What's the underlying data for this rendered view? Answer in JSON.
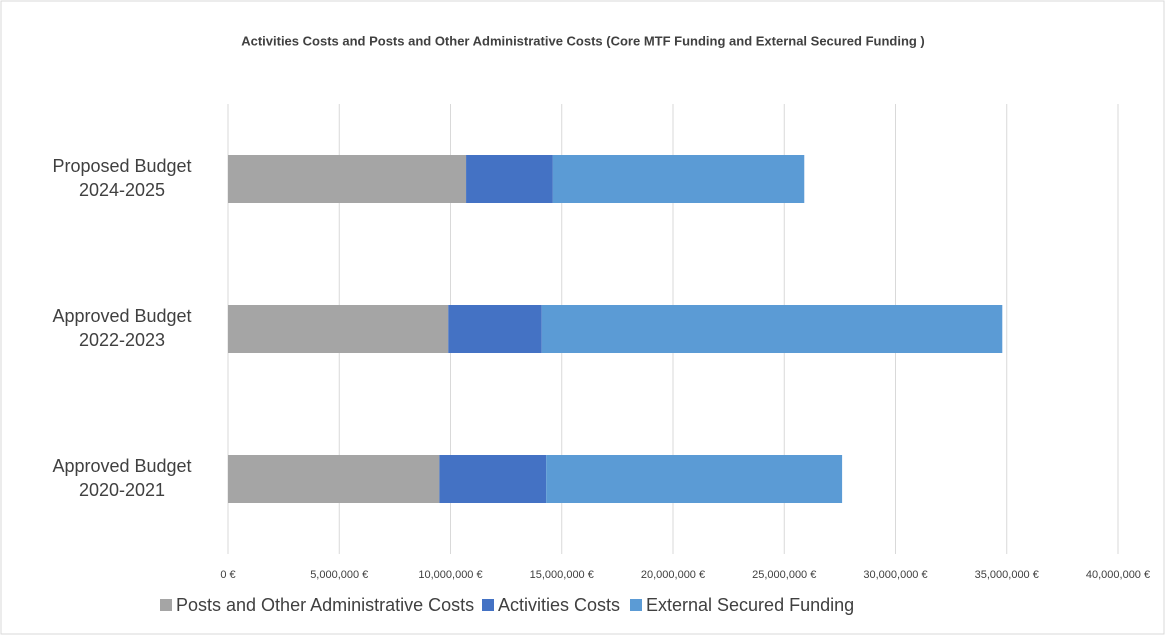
{
  "chart_data": {
    "type": "stacked-barh",
    "title": "Activities Costs and Posts and Other Administrative Costs (Core MTF Funding and External Secured Funding )",
    "categories": [
      [
        "Proposed Budget",
        "2024-2025"
      ],
      [
        "Approved Budget",
        "2022-2023"
      ],
      [
        "Approved Budget",
        "2020-2021"
      ]
    ],
    "series": [
      {
        "name": "Posts and Other Administrative Costs",
        "color": "#a5a5a5",
        "values": [
          10700000,
          9900000,
          9500000
        ]
      },
      {
        "name": "Activities Costs",
        "color": "#4472c4",
        "values": [
          3900000,
          4200000,
          4800000
        ]
      },
      {
        "name": "External Secured Funding",
        "color": "#5b9bd5",
        "values": [
          11300000,
          20700000,
          13300000
        ]
      }
    ],
    "xlim": [
      0,
      40000000
    ],
    "xticks": [
      {
        "value": 0,
        "label": "0 €"
      },
      {
        "value": 5000000,
        "label": "5,000,000 €"
      },
      {
        "value": 10000000,
        "label": "10,000,000 €"
      },
      {
        "value": 15000000,
        "label": "15,000,000 €"
      },
      {
        "value": 20000000,
        "label": "20,000,000 €"
      },
      {
        "value": 25000000,
        "label": "25,000,000 €"
      },
      {
        "value": 30000000,
        "label": "30,000,000 €"
      },
      {
        "value": 35000000,
        "label": "35,000,000 €"
      },
      {
        "value": 40000000,
        "label": "40,000,000 €"
      }
    ],
    "grid": true,
    "legend": "bottom"
  }
}
